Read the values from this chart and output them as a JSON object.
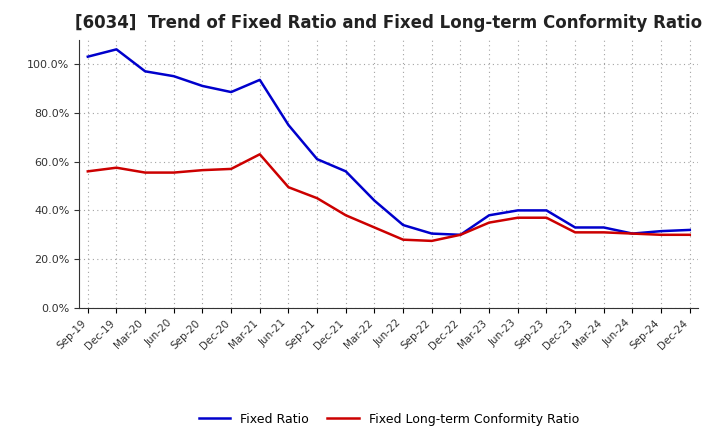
{
  "title": "[6034]  Trend of Fixed Ratio and Fixed Long-term Conformity Ratio",
  "x_labels": [
    "Sep-19",
    "Dec-19",
    "Mar-20",
    "Jun-20",
    "Sep-20",
    "Dec-20",
    "Mar-21",
    "Jun-21",
    "Sep-21",
    "Dec-21",
    "Mar-22",
    "Jun-22",
    "Sep-22",
    "Dec-22",
    "Mar-23",
    "Jun-23",
    "Sep-23",
    "Dec-23",
    "Mar-24",
    "Jun-24",
    "Sep-24",
    "Dec-24"
  ],
  "fixed_ratio": [
    103.0,
    106.0,
    97.0,
    95.0,
    91.0,
    88.5,
    93.5,
    75.0,
    61.0,
    56.0,
    44.0,
    34.0,
    30.5,
    30.0,
    38.0,
    40.0,
    40.0,
    33.0,
    33.0,
    30.5,
    31.5,
    32.0
  ],
  "fixed_lt_ratio": [
    56.0,
    57.5,
    55.5,
    55.5,
    56.5,
    57.0,
    63.0,
    49.5,
    45.0,
    38.0,
    33.0,
    28.0,
    27.5,
    30.0,
    35.0,
    37.0,
    37.0,
    31.0,
    31.0,
    30.5,
    30.0,
    30.0
  ],
  "fixed_ratio_color": "#0000cc",
  "fixed_lt_ratio_color": "#cc0000",
  "ylim": [
    0,
    110
  ],
  "yticks": [
    0,
    20,
    40,
    60,
    80,
    100
  ],
  "background_color": "#ffffff",
  "grid_color": "#999999",
  "title_fontsize": 12,
  "legend_fixed_ratio": "Fixed Ratio",
  "legend_fixed_lt_ratio": "Fixed Long-term Conformity Ratio"
}
